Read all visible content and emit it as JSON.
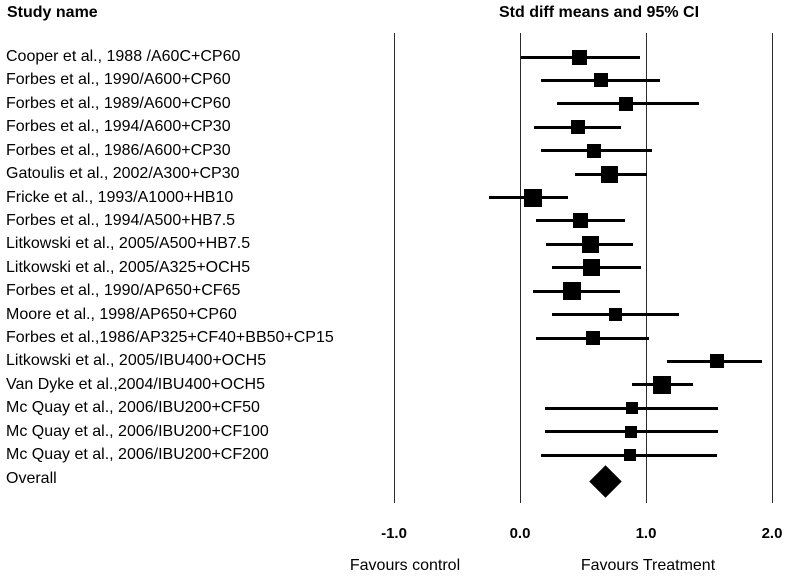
{
  "header": {
    "study_col": "Study name",
    "plot_col": "Std diff means and 95% CI"
  },
  "axis": {
    "tick_labels": [
      "-1.0",
      "0.0",
      "1.0",
      "2.0"
    ],
    "tick_values": [
      -1.0,
      0.0,
      1.0,
      2.0
    ],
    "left_label": "Favours control",
    "right_label": "Favours Treatment"
  },
  "colors": {
    "marker": "#000000",
    "ci_line": "#000000",
    "grid_line": "#2b2b2b",
    "text": "#000000",
    "background": "#ffffff"
  },
  "chart_data": {
    "type": "scatter",
    "subtype": "forest-plot",
    "title": "Std diff means and 95% CI",
    "xlabel_left": "Favours control",
    "xlabel_right": "Favours Treatment",
    "xlim": [
      -1.0,
      2.0
    ],
    "x_ticks": [
      -1.0,
      0.0,
      1.0,
      2.0
    ],
    "grid": "vertical-lines-at-ticks",
    "studies": [
      {
        "label": "Cooper et al., 1988 /A60C+CP60",
        "mean": 0.47,
        "ci_low": 0.01,
        "ci_high": 0.95,
        "size": 15
      },
      {
        "label": "Forbes et al., 1990/A600+CP60",
        "mean": 0.64,
        "ci_low": 0.17,
        "ci_high": 1.11,
        "size": 14
      },
      {
        "label": "Forbes et al., 1989/A600+CP60",
        "mean": 0.84,
        "ci_low": 0.29,
        "ci_high": 1.42,
        "size": 14
      },
      {
        "label": "Forbes et al., 1994/A600+CP30",
        "mean": 0.46,
        "ci_low": 0.11,
        "ci_high": 0.8,
        "size": 14
      },
      {
        "label": "Forbes et al., 1986/A600+CP30",
        "mean": 0.59,
        "ci_low": 0.17,
        "ci_high": 1.05,
        "size": 14
      },
      {
        "label": "Gatoulis et al., 2002/A300+CP30",
        "mean": 0.71,
        "ci_low": 0.44,
        "ci_high": 1.01,
        "size": 17
      },
      {
        "label": "Fricke et al., 1993/A1000+HB10",
        "mean": 0.1,
        "ci_low": -0.25,
        "ci_high": 0.38,
        "size": 18
      },
      {
        "label": "Forbes et al., 1994/A500+HB7.5",
        "mean": 0.48,
        "ci_low": 0.13,
        "ci_high": 0.83,
        "size": 15
      },
      {
        "label": "Litkowski et al., 2005/A500+HB7.5",
        "mean": 0.56,
        "ci_low": 0.21,
        "ci_high": 0.9,
        "size": 17
      },
      {
        "label": "Litkowski et al., 2005/A325+OCH5",
        "mean": 0.57,
        "ci_low": 0.25,
        "ci_high": 0.96,
        "size": 17
      },
      {
        "label": "Forbes et al., 1990/AP650+CF65",
        "mean": 0.41,
        "ci_low": 0.1,
        "ci_high": 0.79,
        "size": 18
      },
      {
        "label": "Moore et al., 1998/AP650+CP60",
        "mean": 0.76,
        "ci_low": 0.25,
        "ci_high": 1.26,
        "size": 13
      },
      {
        "label": "Forbes et al.,1986/AP325+CF40+BB50+CP15",
        "mean": 0.58,
        "ci_low": 0.13,
        "ci_high": 1.02,
        "size": 14
      },
      {
        "label": "Litkowski et al., 2005/IBU400+OCH5",
        "mean": 1.56,
        "ci_low": 1.17,
        "ci_high": 1.92,
        "size": 14
      },
      {
        "label": "Van Dyke et al.,2004/IBU400+OCH5",
        "mean": 1.13,
        "ci_low": 0.89,
        "ci_high": 1.37,
        "size": 18
      },
      {
        "label": "Mc Quay et al., 2006/IBU200+CF50",
        "mean": 0.89,
        "ci_low": 0.2,
        "ci_high": 1.57,
        "size": 12
      },
      {
        "label": "Mc Quay et al., 2006/IBU200+CF100",
        "mean": 0.88,
        "ci_low": 0.2,
        "ci_high": 1.57,
        "size": 12
      },
      {
        "label": "Mc Quay et al., 2006/IBU200+CF200",
        "mean": 0.87,
        "ci_low": 0.17,
        "ci_high": 1.56,
        "size": 12
      }
    ],
    "overall": {
      "label": "Overall",
      "mean": 0.68,
      "ci_low": 0.55,
      "ci_high": 0.81
    }
  }
}
